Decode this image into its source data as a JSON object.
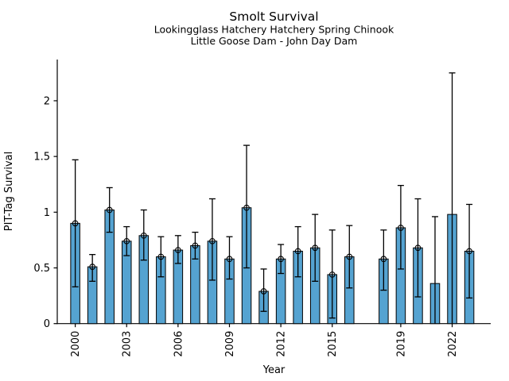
{
  "chart_data": {
    "type": "bar",
    "title": "Smolt Survival",
    "subtitle1": "Lookingglass Hatchery Hatchery Spring Chinook",
    "subtitle2": "Little Goose Dam - John Day Dam",
    "xlabel": "Year",
    "ylabel": "PIT-Tag Survival",
    "bar_color": "#55a3d1",
    "bar_edge_color": "#000000",
    "error_color": "#000000",
    "axis_color": "#000000",
    "xlim": [
      1998.95,
      2024.25
    ],
    "ylim": [
      0,
      2.37
    ],
    "x_ticks": [
      2000,
      2003,
      2006,
      2009,
      2012,
      2015,
      2019,
      2022
    ],
    "y_ticks": [
      0,
      0.5,
      1,
      1.5,
      2
    ],
    "legend": "none",
    "grid": false,
    "points": [
      {
        "year": 2000,
        "value": 0.9,
        "err_low": 0.33,
        "err_high": 1.47,
        "marker": true
      },
      {
        "year": 2001,
        "value": 0.51,
        "err_low": 0.38,
        "err_high": 0.62,
        "marker": true
      },
      {
        "year": 2002,
        "value": 1.02,
        "err_low": 0.82,
        "err_high": 1.22,
        "marker": true
      },
      {
        "year": 2003,
        "value": 0.74,
        "err_low": 0.61,
        "err_high": 0.87,
        "marker": true
      },
      {
        "year": 2004,
        "value": 0.79,
        "err_low": 0.57,
        "err_high": 1.02,
        "marker": true
      },
      {
        "year": 2005,
        "value": 0.6,
        "err_low": 0.42,
        "err_high": 0.78,
        "marker": true
      },
      {
        "year": 2006,
        "value": 0.66,
        "err_low": 0.54,
        "err_high": 0.79,
        "marker": true
      },
      {
        "year": 2007,
        "value": 0.7,
        "err_low": 0.58,
        "err_high": 0.82,
        "marker": true
      },
      {
        "year": 2008,
        "value": 0.74,
        "err_low": 0.39,
        "err_high": 1.12,
        "marker": true
      },
      {
        "year": 2009,
        "value": 0.58,
        "err_low": 0.4,
        "err_high": 0.78,
        "marker": true
      },
      {
        "year": 2010,
        "value": 1.04,
        "err_low": 0.5,
        "err_high": 1.6,
        "marker": true
      },
      {
        "year": 2011,
        "value": 0.29,
        "err_low": 0.11,
        "err_high": 0.49,
        "marker": true
      },
      {
        "year": 2012,
        "value": 0.58,
        "err_low": 0.45,
        "err_high": 0.71,
        "marker": true
      },
      {
        "year": 2013,
        "value": 0.65,
        "err_low": 0.42,
        "err_high": 0.87,
        "marker": true
      },
      {
        "year": 2014,
        "value": 0.68,
        "err_low": 0.38,
        "err_high": 0.98,
        "marker": true
      },
      {
        "year": 2015,
        "value": 0.44,
        "err_low": 0.05,
        "err_high": 0.84,
        "marker": true
      },
      {
        "year": 2016,
        "value": 0.6,
        "err_low": 0.32,
        "err_high": 0.88,
        "marker": true
      },
      {
        "year": 2018,
        "value": 0.58,
        "err_low": 0.3,
        "err_high": 0.84,
        "marker": true
      },
      {
        "year": 2019,
        "value": 0.86,
        "err_low": 0.49,
        "err_high": 1.24,
        "marker": true
      },
      {
        "year": 2020,
        "value": 0.68,
        "err_low": 0.24,
        "err_high": 1.12,
        "marker": true
      },
      {
        "year": 2021,
        "value": 0.36,
        "err_low": 0.0,
        "err_high": 0.96,
        "marker": false
      },
      {
        "year": 2022,
        "value": 0.98,
        "err_low": 0.0,
        "err_high": 2.25,
        "marker": false
      },
      {
        "year": 2023,
        "value": 0.65,
        "err_low": 0.23,
        "err_high": 1.07,
        "marker": true
      }
    ]
  }
}
